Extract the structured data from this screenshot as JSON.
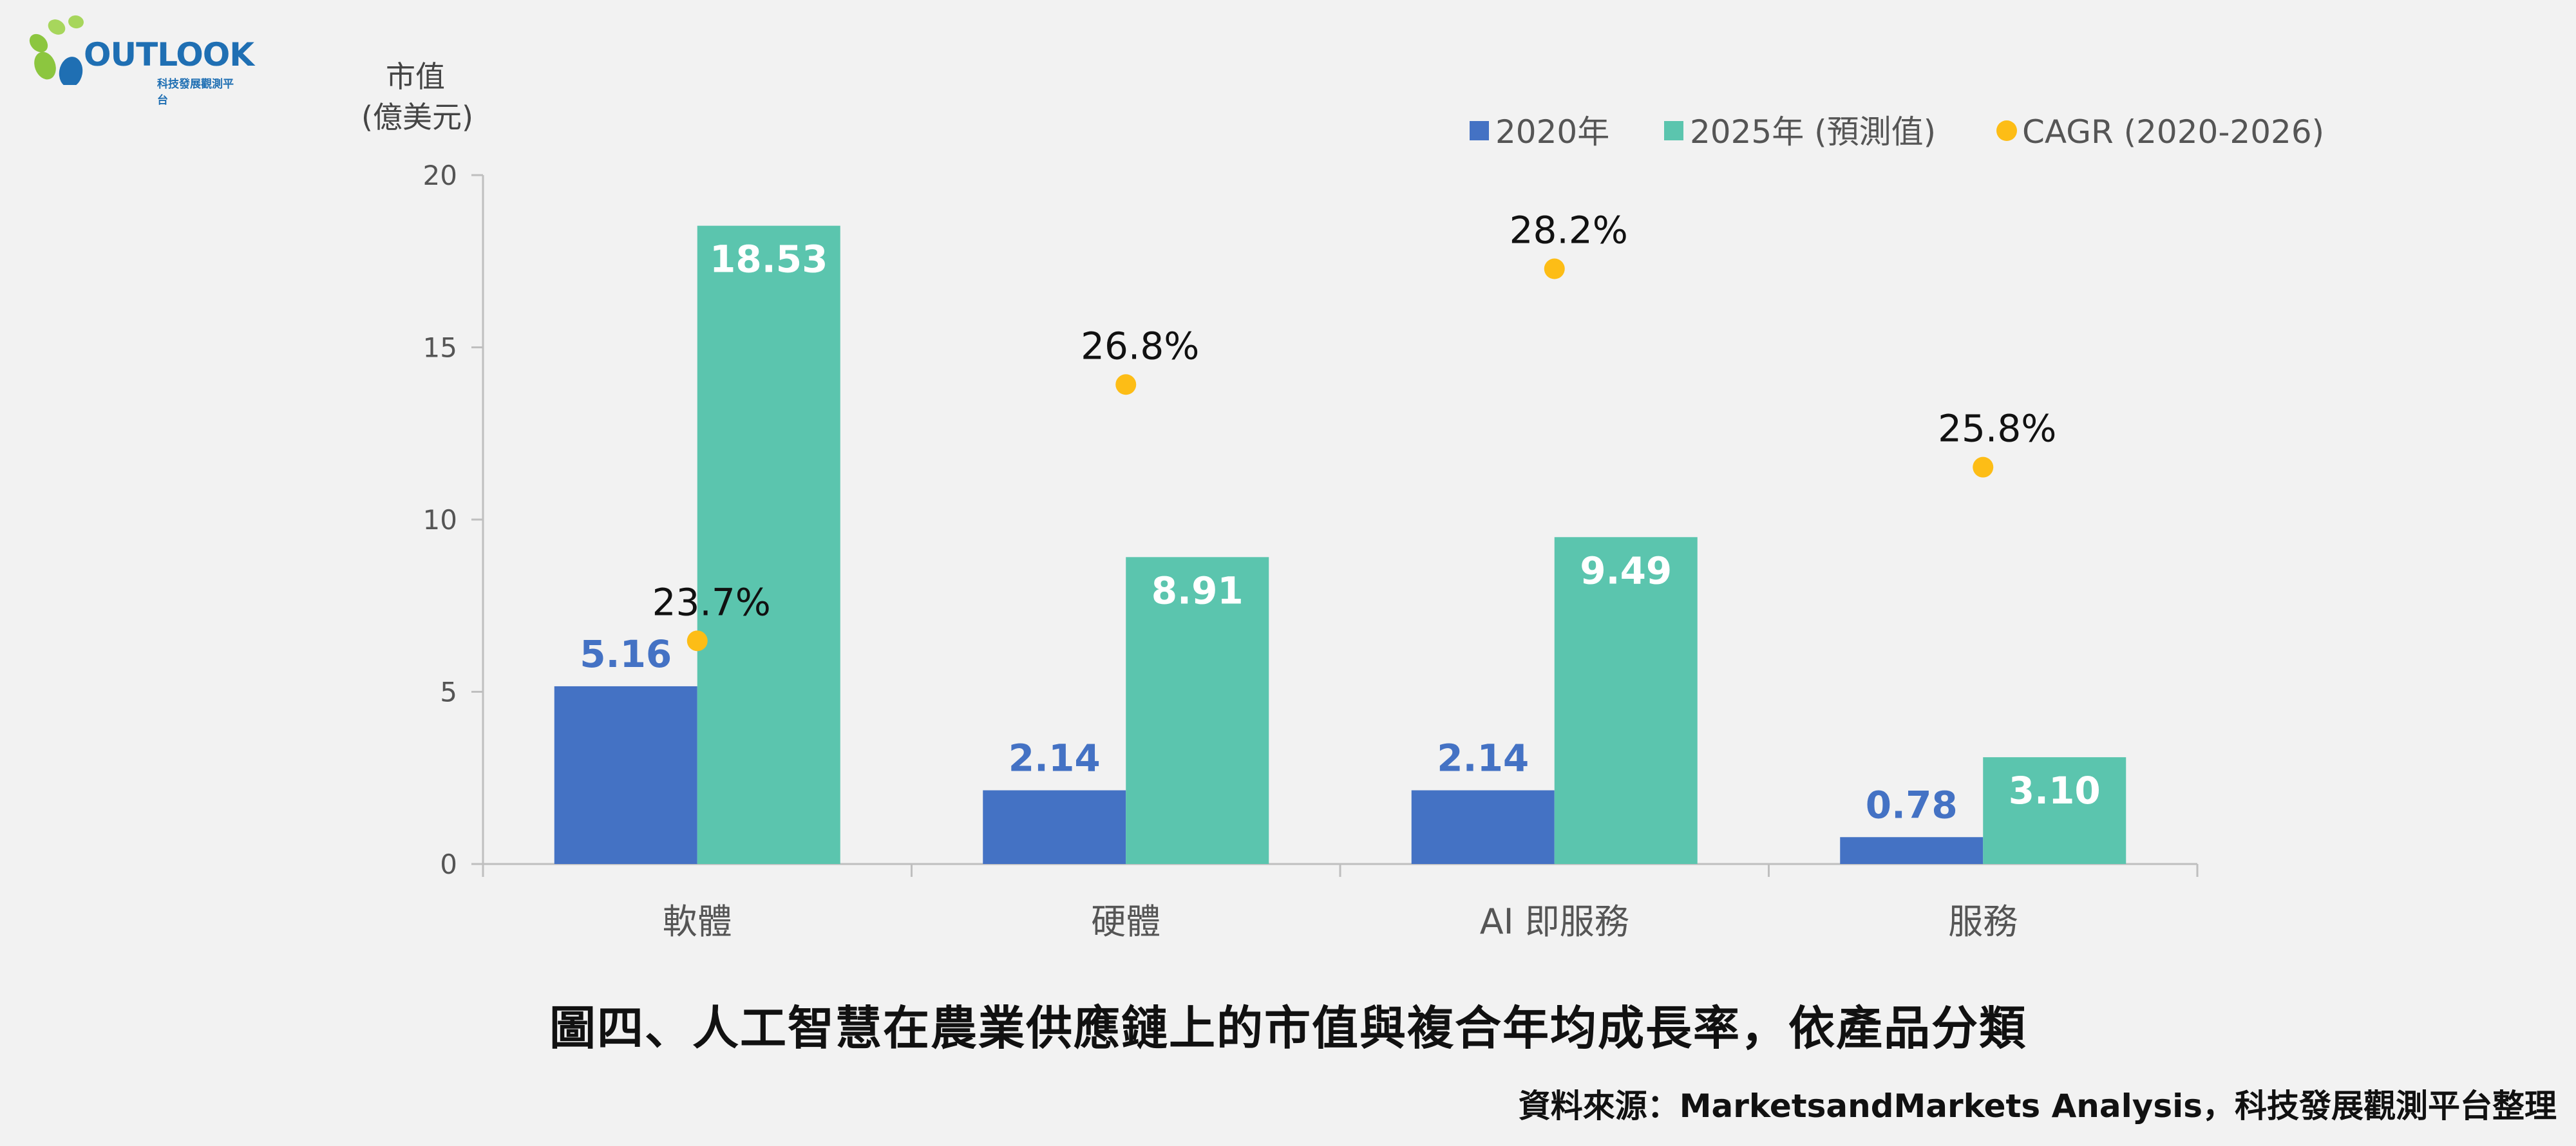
{
  "logo": {
    "text": "OUTLOOK",
    "subtitle": "科技發展觀測平台"
  },
  "caption": "圖四、人工智慧在農業供應鏈上的市值與複合年均成長率，依產品分類",
  "source": "資料來源：MarketsandMarkets Analysis，科技發展觀測平台整理",
  "colors": {
    "series2020": "#4472c4",
    "series2025": "#5bc5ae",
    "cagr": "#fdbd16"
  },
  "chart_data": {
    "type": "bar",
    "ylabel_line1": "市值",
    "ylabel_line2": "(億美元)",
    "ylim": [
      0,
      20
    ],
    "yticks": [
      "0",
      "5",
      "10",
      "15",
      "20"
    ],
    "categories": [
      "軟體",
      "硬體",
      "AI 即服務",
      "服務"
    ],
    "series": [
      {
        "name": "2020年",
        "values": [
          5.16,
          2.14,
          2.14,
          0.78
        ],
        "labels": [
          "5.16",
          "2.14",
          "2.14",
          "0.78"
        ]
      },
      {
        "name": "2025年 (預測值)",
        "values": [
          18.53,
          8.91,
          9.49,
          3.1
        ],
        "labels": [
          "18.53",
          "8.91",
          "9.49",
          "3.10"
        ]
      }
    ],
    "cagr": {
      "name": "CAGR (2020-2026)",
      "values": [
        23.7,
        26.8,
        28.2,
        25.8
      ],
      "labels": [
        "23.7%",
        "26.8%",
        "28.2%",
        "25.8%"
      ]
    },
    "legend_position": "top-right",
    "grid": false
  }
}
